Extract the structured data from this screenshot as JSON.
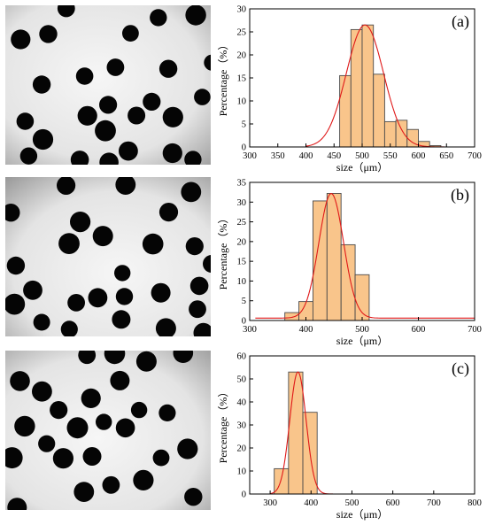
{
  "panels": [
    {
      "id": "a",
      "panel_label": "(a)",
      "chart_data": {
        "type": "bar",
        "xlabel": "size（μm）",
        "ylabel": "Percentage（%）",
        "xlim": [
          300,
          700
        ],
        "ylim": [
          0,
          30
        ],
        "xticks": [
          300,
          350,
          400,
          450,
          500,
          550,
          600,
          650,
          700
        ],
        "yticks": [
          0,
          5,
          10,
          15,
          20,
          25,
          30
        ],
        "bin_width": 20,
        "bins": [
          {
            "x": 470,
            "y": 15.5
          },
          {
            "x": 490,
            "y": 25.5
          },
          {
            "x": 510,
            "y": 26.5
          },
          {
            "x": 530,
            "y": 15.8
          },
          {
            "x": 550,
            "y": 5.5
          },
          {
            "x": 570,
            "y": 5.8
          },
          {
            "x": 590,
            "y": 3.8
          },
          {
            "x": 610,
            "y": 1.2
          },
          {
            "x": 630,
            "y": 0.3
          }
        ],
        "fit": {
          "type": "gaussian",
          "mean": 505,
          "sigma": 33,
          "peak": 26.5,
          "baseline": 0,
          "x_start": 400,
          "x_end": 660
        },
        "bar_fill": "#f9c58b",
        "bar_stroke": "#4a4a4a",
        "fit_color": "#e01818"
      }
    },
    {
      "id": "b",
      "panel_label": "(b)",
      "chart_data": {
        "type": "bar",
        "xlabel": "size（μm）",
        "ylabel": "Percentage（%）",
        "xlim": [
          300,
          700
        ],
        "ylim": [
          0,
          35
        ],
        "xticks": [
          300,
          400,
          500,
          600,
          700
        ],
        "yticks": [
          0,
          5,
          10,
          15,
          20,
          25,
          30,
          35
        ],
        "bin_width": 25,
        "bins": [
          {
            "x": 375,
            "y": 2.0
          },
          {
            "x": 400,
            "y": 4.8
          },
          {
            "x": 425,
            "y": 30.3
          },
          {
            "x": 450,
            "y": 32.2
          },
          {
            "x": 475,
            "y": 19.2
          },
          {
            "x": 500,
            "y": 11.6
          }
        ],
        "fit": {
          "type": "gaussian",
          "mean": 445,
          "sigma": 22,
          "peak": 32.2,
          "baseline": 0.6,
          "x_start": 310,
          "x_end": 700
        },
        "bar_fill": "#f9c58b",
        "bar_stroke": "#4a4a4a",
        "fit_color": "#e01818"
      }
    },
    {
      "id": "c",
      "panel_label": "(c)",
      "chart_data": {
        "type": "bar",
        "xlabel": "size（μm）",
        "ylabel": "Percentage（%）",
        "xlim": [
          250,
          800
        ],
        "ylim": [
          0,
          60
        ],
        "xticks": [
          300,
          400,
          500,
          600,
          700,
          800
        ],
        "yticks": [
          0,
          10,
          20,
          30,
          40,
          50,
          60
        ],
        "bin_width": 35,
        "bins": [
          {
            "x": 327.5,
            "y": 11.0
          },
          {
            "x": 362.5,
            "y": 53.0
          },
          {
            "x": 397.5,
            "y": 35.5
          }
        ],
        "fit": {
          "type": "gaussian",
          "mean": 368,
          "sigma": 20,
          "peak": 53.0,
          "baseline": 0,
          "x_start": 300,
          "x_end": 460
        },
        "bar_fill": "#f9c58b",
        "bar_stroke": "#4a4a4a",
        "fit_color": "#e01818"
      }
    }
  ]
}
